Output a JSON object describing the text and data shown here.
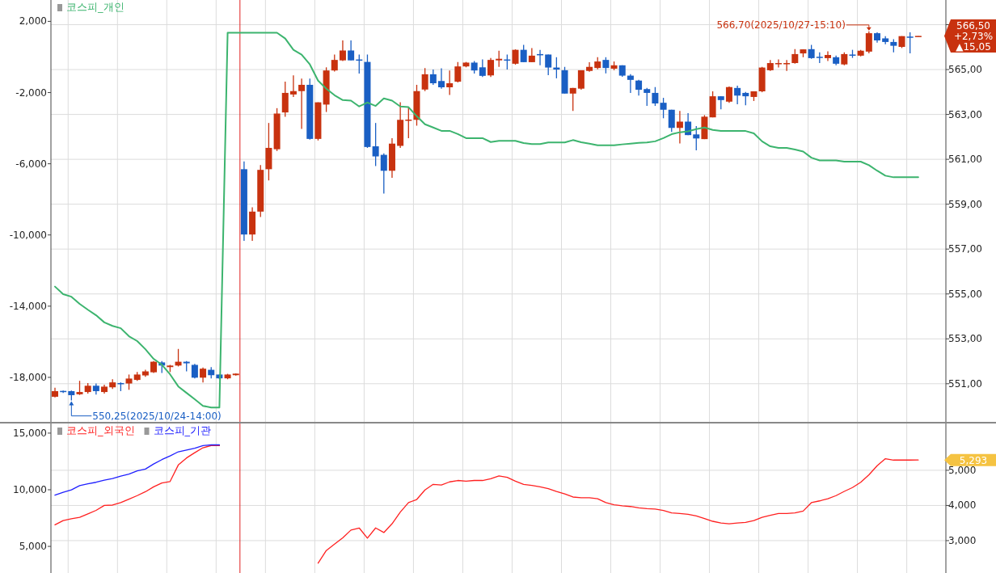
{
  "chart_data": [
    {
      "type": "candlestick",
      "categories": [
        null,
        null,
        null,
        null,
        null,
        null,
        null,
        null,
        null,
        null,
        null,
        null,
        null,
        null,
        null,
        null,
        null,
        null,
        null,
        null,
        null,
        null,
        null,
        null,
        null,
        null,
        null,
        null,
        null,
        null,
        null,
        null,
        null,
        null,
        null,
        null,
        null,
        null,
        null,
        null,
        null,
        null,
        null,
        null,
        null,
        null,
        null,
        null,
        null,
        null,
        null,
        null,
        null,
        null,
        null,
        null,
        null,
        null,
        null,
        null,
        null,
        null,
        null,
        null,
        null,
        null,
        null,
        null,
        null,
        null,
        null,
        null,
        null,
        null,
        null,
        null,
        null,
        null,
        null,
        null,
        null,
        null,
        null,
        null,
        null,
        null,
        null,
        null,
        null,
        null,
        null,
        null,
        null,
        null,
        null,
        null,
        null,
        null,
        null,
        null,
        null,
        null,
        null,
        null,
        null,
        null
      ],
      "ylim": [
        -20500,
        3200
      ],
      "yticks": [
        {
          "value": 2000,
          "label": "2,000"
        },
        {
          "value": -2000,
          "label": "-2,000"
        },
        {
          "value": -6000,
          "label": "-6,000"
        },
        {
          "value": -10000,
          "label": "-10,000"
        },
        {
          "value": -14000,
          "label": "-14,000"
        },
        {
          "value": -18000,
          "label": "-18,000"
        }
      ],
      "y2lim": [
        549.3,
        568.1
      ],
      "y2ticks": [
        {
          "value": 551,
          "label": "551,00"
        },
        {
          "value": 553,
          "label": "553,00"
        },
        {
          "value": 555,
          "label": "555,00"
        },
        {
          "value": 557,
          "label": "557,00"
        },
        {
          "value": 559,
          "label": "559,00"
        },
        {
          "value": 561,
          "label": "561,00"
        },
        {
          "value": 563,
          "label": "563,00"
        },
        {
          "value": 565,
          "label": "565,00"
        },
        {
          "value": 567,
          "label": null
        }
      ],
      "grid": true,
      "legend": "top left",
      "annotations": [
        "550,25(2025/10/24-14:00)",
        "566,70(2025/10/27-15:10)",
        "566,50",
        "+2,73%",
        "▲15,05"
      ],
      "series": [
        {
          "axis": "y2",
          "colors": [
            "#c8320f",
            "#1a5fc4",
            "#1a5fc4",
            "#c8320f",
            "#c8320f",
            "#1a5fc4",
            "#c8320f",
            "#c8320f",
            "#1a5fc4",
            "#c8320f",
            "#c8320f",
            "#c8320f",
            "#c8320f",
            "#1a5fc4",
            "#c8320f",
            "#c8320f",
            "#1a5fc4",
            "#1a5fc4",
            "#c8320f",
            "#1a5fc4",
            "#1a5fc4",
            "#c8320f",
            "#c8320f",
            "#1a5fc4",
            "#c8320f",
            "#c8320f",
            "#c8320f",
            "#c8320f",
            "#c8320f",
            "#c8320f",
            "#c8320f",
            "#1a5fc4",
            "#c8320f",
            "#c8320f",
            "#c8320f",
            "#c8320f",
            "#1a5fc4",
            "#1a5fc4",
            "#1a5fc4",
            "#1a5fc4",
            "#1a5fc4",
            "#c8320f",
            "#c8320f",
            "#c8320f",
            "#c8320f",
            "#c8320f",
            "#1a5fc4",
            "#1a5fc4",
            "#c8320f",
            "#c8320f",
            "#c8320f",
            "#1a5fc4",
            "#1a5fc4",
            "#c8320f",
            "#c8320f",
            "#1a5fc4",
            "#c8320f",
            "#1a5fc4",
            "#c8320f",
            "#1a5fc4",
            "#1a5fc4",
            "#1a5fc4",
            "#1a5fc4",
            "#c8320f",
            "#c8320f",
            "#c8320f",
            "#c8320f",
            "#1a5fc4",
            "#c8320f",
            "#1a5fc4",
            "#1a5fc4",
            "#1a5fc4",
            "#1a5fc4",
            "#1a5fc4",
            "#1a5fc4",
            "#1a5fc4",
            "#c8320f",
            "#1a5fc4",
            "#1a5fc4",
            "#c8320f",
            "#c8320f",
            "#1a5fc4",
            "#c8320f",
            "#1a5fc4",
            "#1a5fc4",
            "#c8320f",
            "#c8320f",
            "#c8320f",
            "#c8320f",
            "#c8320f",
            "#c8320f",
            "#c8320f",
            "#1a5fc4",
            "#1a5fc4",
            "#c8320f",
            "#1a5fc4",
            "#c8320f",
            "#1a5fc4",
            "#c8320f",
            "#c8320f",
            "#1a5fc4",
            "#1a5fc4",
            "#1a5fc4",
            "#c8320f",
            "#1a5fc4",
            "#c8320f"
          ],
          "ohlc": [
            [
              550.42,
              550.82,
              550.39,
              550.67
            ],
            [
              550.68,
              550.7,
              550.59,
              550.65
            ],
            [
              550.67,
              550.7,
              550.25,
              550.49
            ],
            [
              550.53,
              551.13,
              550.5,
              550.63
            ],
            [
              550.63,
              551.03,
              550.56,
              550.91
            ],
            [
              550.91,
              551.01,
              550.52,
              550.67
            ],
            [
              550.63,
              550.96,
              550.56,
              550.87
            ],
            [
              550.84,
              551.2,
              550.77,
              551.06
            ],
            [
              551.03,
              551.06,
              550.67,
              551.0
            ],
            [
              551.01,
              551.41,
              550.73,
              551.23
            ],
            [
              551.17,
              551.52,
              551.13,
              551.41
            ],
            [
              551.37,
              551.62,
              551.31,
              551.55
            ],
            [
              551.51,
              552.01,
              551.48,
              551.98
            ],
            [
              551.95,
              552.01,
              551.48,
              551.81
            ],
            [
              551.74,
              551.84,
              551.52,
              551.81
            ],
            [
              551.81,
              552.55,
              551.77,
              551.98
            ],
            [
              551.98,
              552.01,
              551.55,
              551.91
            ],
            [
              551.84,
              551.88,
              551.24,
              551.27
            ],
            [
              551.27,
              551.72,
              551.06,
              551.67
            ],
            [
              551.62,
              551.74,
              551.24,
              551.38
            ],
            [
              551.41,
              551.41,
              551.2,
              551.24
            ],
            [
              551.24,
              551.44,
              551.2,
              551.41
            ],
            [
              551.38,
              551.46,
              551.36,
              551.45
            ],
            [
              560.56,
              560.91,
              557.37,
              557.65
            ],
            [
              557.65,
              558.86,
              557.37,
              558.67
            ],
            [
              558.67,
              560.74,
              558.43,
              560.53
            ],
            [
              560.56,
              562.62,
              560.06,
              561.51
            ],
            [
              561.45,
              563.28,
              561.37,
              563.04
            ],
            [
              563.09,
              564.46,
              562.9,
              563.96
            ],
            [
              563.89,
              564.74,
              563.78,
              564.04
            ],
            [
              564.04,
              564.6,
              562.36,
              564.32
            ],
            [
              564.32,
              564.6,
              561.88,
              561.91
            ],
            [
              561.91,
              563.54,
              561.84,
              563.54
            ],
            [
              563.44,
              565.1,
              563.11,
              564.96
            ],
            [
              564.96,
              565.67,
              564.91,
              565.43
            ],
            [
              565.41,
              566.3,
              565.38,
              565.85
            ],
            [
              565.85,
              566.3,
              565.41,
              565.41
            ],
            [
              565.45,
              565.67,
              564.82,
              565.43
            ],
            [
              565.34,
              565.67,
              561.51,
              561.55
            ],
            [
              561.58,
              562.62,
              560.7,
              561.13
            ],
            [
              561.2,
              561.27,
              559.47,
              560.49
            ],
            [
              560.49,
              561.94,
              560.18,
              561.7
            ],
            [
              561.6,
              563.54,
              561.51,
              562.76
            ],
            [
              562.74,
              563.33,
              561.94,
              562.77
            ],
            [
              562.76,
              564.32,
              562.5,
              564.04
            ],
            [
              564.11,
              565.07,
              564.04,
              564.79
            ],
            [
              564.79,
              565.0,
              564.32,
              564.39
            ],
            [
              564.49,
              565.06,
              564.15,
              564.21
            ],
            [
              564.21,
              564.96,
              563.87,
              564.39
            ],
            [
              564.46,
              565.34,
              564.43,
              565.14
            ],
            [
              565.14,
              565.34,
              565.1,
              565.31
            ],
            [
              565.31,
              565.38,
              564.82,
              564.96
            ],
            [
              565.1,
              565.45,
              564.67,
              564.72
            ],
            [
              564.74,
              565.52,
              564.67,
              565.43
            ],
            [
              565.41,
              565.84,
              565.12,
              565.48
            ],
            [
              565.45,
              565.67,
              565.0,
              565.43
            ],
            [
              565.26,
              565.9,
              565.22,
              565.88
            ],
            [
              565.88,
              566.1,
              565.33,
              565.33
            ],
            [
              565.33,
              565.96,
              565.33,
              565.62
            ],
            [
              565.69,
              565.88,
              565.19,
              565.67
            ],
            [
              565.67,
              565.67,
              564.75,
              565.09
            ],
            [
              565.09,
              565.55,
              564.61,
              565.0
            ],
            [
              564.97,
              565.12,
              563.93,
              563.93
            ],
            [
              563.93,
              564.18,
              563.16,
              564.18
            ],
            [
              564.15,
              564.97,
              564.1,
              564.97
            ],
            [
              564.94,
              565.33,
              564.9,
              565.12
            ],
            [
              565.07,
              565.55,
              565.01,
              565.36
            ],
            [
              565.43,
              565.55,
              564.83,
              565.07
            ],
            [
              565.04,
              565.36,
              564.97,
              565.19
            ],
            [
              565.19,
              565.19,
              564.68,
              564.73
            ],
            [
              564.73,
              564.8,
              563.96,
              564.54
            ],
            [
              564.51,
              564.54,
              563.84,
              564.1
            ],
            [
              564.13,
              564.18,
              563.38,
              563.96
            ],
            [
              563.96,
              564.22,
              563.38,
              563.49
            ],
            [
              563.52,
              563.74,
              562.83,
              563.21
            ],
            [
              563.21,
              563.21,
              562.22,
              562.4
            ],
            [
              562.4,
              563.16,
              561.71,
              562.68
            ],
            [
              562.68,
              563.06,
              562.08,
              562.08
            ],
            [
              562.11,
              562.48,
              561.4,
              561.93
            ],
            [
              561.9,
              562.97,
              561.9,
              562.9
            ],
            [
              562.87,
              564.03,
              562.87,
              563.81
            ],
            [
              563.81,
              563.81,
              563.23,
              563.64
            ],
            [
              563.57,
              564.25,
              563.52,
              564.22
            ],
            [
              564.18,
              564.28,
              563.45,
              563.84
            ],
            [
              563.96,
              564.0,
              563.41,
              563.81
            ],
            [
              563.78,
              564.03,
              563.6,
              564.03
            ],
            [
              564.03,
              565.12,
              563.99,
              565.09
            ],
            [
              564.97,
              565.43,
              564.94,
              565.29
            ],
            [
              565.27,
              565.45,
              565.09,
              565.29
            ],
            [
              565.27,
              565.43,
              564.94,
              565.29
            ],
            [
              565.29,
              565.91,
              565.26,
              565.69
            ],
            [
              565.72,
              565.9,
              565.55,
              565.9
            ],
            [
              565.91,
              566.1,
              565.48,
              565.51
            ],
            [
              565.57,
              565.77,
              565.29,
              565.55
            ],
            [
              565.51,
              565.81,
              565.38,
              565.65
            ],
            [
              565.55,
              565.62,
              565.19,
              565.26
            ],
            [
              565.23,
              565.77,
              565.19,
              565.69
            ],
            [
              565.67,
              565.88,
              565.52,
              565.65
            ],
            [
              565.62,
              565.88,
              565.59,
              565.84
            ],
            [
              565.8,
              566.7,
              565.72,
              566.62
            ],
            [
              566.62,
              566.66,
              566.2,
              566.3
            ],
            [
              566.39,
              566.49,
              566.13,
              566.23
            ],
            [
              566.23,
              566.35,
              565.77,
              566.06
            ],
            [
              566.01,
              566.49,
              565.96,
              566.49
            ],
            [
              566.47,
              566.66,
              565.72,
              566.46
            ],
            [
              566.49,
              566.5,
              566.49,
              566.5
            ]
          ]
        },
        {
          "type": "line",
          "axis": "y",
          "name": "코스피_개인",
          "color": "#3cb46e",
          "values": [
            -12900,
            -13330,
            -13470,
            -13870,
            -14200,
            -14510,
            -14910,
            -15110,
            -15240,
            -15690,
            -15960,
            -16420,
            -16960,
            -17290,
            -17830,
            -18510,
            -18870,
            -19230,
            -19600,
            -19690,
            -19690,
            1360,
            1360,
            1360,
            1360,
            1360,
            1360,
            1360,
            1040,
            400,
            130,
            -420,
            -1330,
            -1780,
            -2150,
            -2420,
            -2450,
            -2780,
            -2560,
            -2750,
            -2330,
            -2450,
            -2780,
            -2820,
            -3330,
            -3780,
            -3960,
            -4150,
            -4150,
            -4330,
            -4560,
            -4560,
            -4560,
            -4780,
            -4710,
            -4710,
            -4710,
            -4840,
            -4890,
            -4890,
            -4800,
            -4800,
            -4800,
            -4670,
            -4790,
            -4870,
            -4960,
            -4960,
            -4960,
            -4910,
            -4870,
            -4830,
            -4800,
            -4740,
            -4560,
            -4340,
            -4230,
            -4180,
            -4050,
            -3960,
            -4100,
            -4160,
            -4160,
            -4160,
            -4160,
            -4290,
            -4740,
            -5020,
            -5110,
            -5110,
            -5200,
            -5310,
            -5660,
            -5810,
            -5810,
            -5810,
            -5880,
            -5880,
            -5880,
            -6080,
            -6390,
            -6670,
            -6760,
            -6760,
            -6760,
            -6760
          ]
        }
      ]
    },
    {
      "type": "line",
      "categories": [
        null,
        null,
        null,
        null,
        null,
        null,
        null,
        null,
        null,
        null,
        null,
        null,
        null,
        null,
        null,
        null,
        null,
        null,
        null,
        null,
        null,
        null,
        null,
        null,
        null,
        null,
        null,
        null,
        null,
        null,
        null,
        null,
        null,
        null,
        null,
        null,
        null,
        null,
        null,
        null,
        null,
        null,
        null,
        null,
        null,
        null,
        null,
        null,
        null,
        null,
        null,
        null,
        null,
        null,
        null,
        null,
        null,
        null,
        null,
        null,
        null,
        null,
        null,
        null,
        null,
        null,
        null,
        null,
        null,
        null,
        null,
        null,
        null,
        null,
        null,
        null,
        null,
        null,
        null,
        null,
        null,
        null,
        null,
        null,
        null,
        null,
        null,
        null,
        null,
        null,
        null,
        null,
        null,
        null,
        null,
        null,
        null,
        null,
        null,
        null,
        null,
        null,
        null,
        null,
        null,
        null
      ],
      "ylim": [
        2650,
        15850
      ],
      "yticks": [
        {
          "value": 15000,
          "label": "15,000"
        },
        {
          "value": 10000,
          "label": "10,000"
        },
        {
          "value": 5000,
          "label": "5,000"
        }
      ],
      "y2lim": [
        2080,
        6330
      ],
      "y2ticks": [
        {
          "value": 5000,
          "label": "5,000"
        },
        {
          "value": 4000,
          "label": "4,000"
        },
        {
          "value": 3000,
          "label": "3,000"
        }
      ],
      "grid": true,
      "legend": "top left",
      "annotations": [
        "5,293"
      ],
      "series": [
        {
          "axis": "y2",
          "name": "코스피_외국인",
          "color": "#ff2020",
          "values": [
            3450,
            3570,
            3620,
            3660,
            3760,
            3860,
            4000,
            4010,
            4080,
            4180,
            4280,
            4390,
            4530,
            4640,
            4680,
            5150,
            5350,
            5500,
            5640,
            5700,
            5700,
            null,
            null,
            null,
            null,
            null,
            null,
            null,
            null,
            null,
            null,
            null,
            2360,
            2720,
            2900,
            3080,
            3300,
            3360,
            3070,
            3360,
            3230,
            3480,
            3810,
            4080,
            4170,
            4440,
            4600,
            4580,
            4670,
            4710,
            4690,
            4710,
            4710,
            4760,
            4840,
            4800,
            4690,
            4600,
            4570,
            4530,
            4480,
            4400,
            4330,
            4240,
            4220,
            4220,
            4190,
            4080,
            4020,
            3990,
            3970,
            3930,
            3910,
            3900,
            3860,
            3790,
            3770,
            3750,
            3700,
            3630,
            3550,
            3500,
            3480,
            3500,
            3520,
            3570,
            3660,
            3720,
            3770,
            3770,
            3790,
            3840,
            4080,
            4130,
            4190,
            4280,
            4400,
            4510,
            4660,
            4870,
            5130,
            5330,
            5290,
            5290,
            5290,
            5293
          ]
        },
        {
          "axis": "y",
          "name": "코스피_기관",
          "color": "#2020ff",
          "values": [
            9520,
            9780,
            9990,
            10360,
            10520,
            10660,
            10850,
            10990,
            11210,
            11380,
            11670,
            11830,
            12270,
            12660,
            12990,
            13350,
            13500,
            13660,
            13900,
            13960,
            13960,
            null,
            null,
            null,
            null,
            null,
            null,
            null,
            null,
            null,
            null,
            null,
            null,
            null,
            null,
            null,
            null,
            null,
            null,
            null,
            null,
            null,
            null,
            null,
            null,
            null,
            null,
            null,
            null,
            null,
            null,
            null,
            null,
            null,
            null,
            null,
            null,
            null,
            null,
            null,
            null,
            null,
            null,
            null,
            null,
            null,
            null,
            null,
            null,
            null,
            null,
            null,
            null,
            null,
            null,
            null,
            null,
            null,
            null,
            null,
            null,
            null,
            null,
            null,
            null,
            null,
            null,
            null,
            null,
            null,
            null,
            null,
            null,
            null,
            null,
            null,
            null,
            null,
            null,
            null,
            null,
            null,
            null,
            null,
            null,
            null
          ]
        }
      ]
    }
  ]
}
